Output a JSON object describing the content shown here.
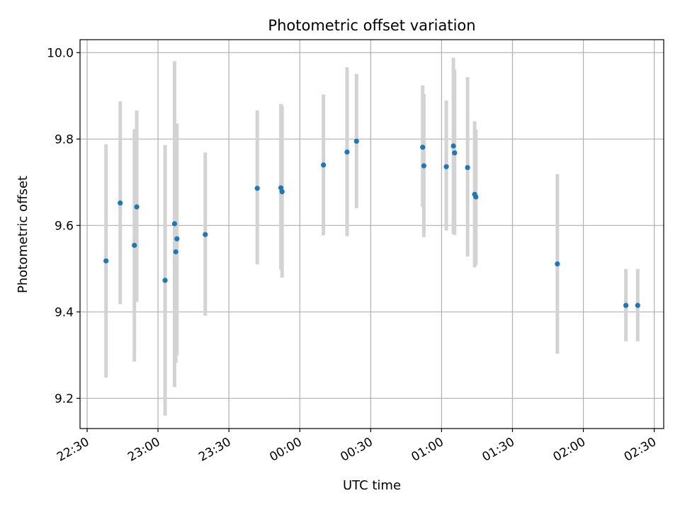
{
  "chart_data": {
    "type": "scatter",
    "title": "Photometric offset variation",
    "xlabel": "UTC time",
    "ylabel": "Photometric offset",
    "x_tick_labels": [
      "22:30",
      "23:00",
      "23:30",
      "00:00",
      "00:30",
      "01:00",
      "01:30",
      "02:00",
      "02:30"
    ],
    "y_tick_labels": [
      "9.2",
      "9.4",
      "9.6",
      "9.8",
      "10.0"
    ],
    "y_ticks": [
      9.2,
      9.4,
      9.6,
      9.8,
      10.0
    ],
    "xlim": [
      "22:27",
      "02:34"
    ],
    "ylim": [
      9.13,
      10.03
    ],
    "grid": true,
    "colors": {
      "points": "#1f77b4",
      "error_bars": "#d3d3d3",
      "grid": "#b0b0b0"
    },
    "series": [
      {
        "x": [
          "22:38",
          "22:44",
          "22:50",
          "22:51",
          "23:03",
          "23:07",
          "23:07:30",
          "23:08",
          "23:20",
          "23:42",
          "23:52",
          "23:52:30",
          "00:10",
          "00:20",
          "00:24",
          "00:52",
          "00:52:30",
          "01:02",
          "01:05",
          "01:05:30",
          "01:11",
          "01:14",
          "01:14:30",
          "01:49",
          "02:18",
          "02:23"
        ],
        "y": [
          9.518,
          9.652,
          9.554,
          9.643,
          9.473,
          9.604,
          9.539,
          9.569,
          9.579,
          9.686,
          9.687,
          9.678,
          9.74,
          9.77,
          9.795,
          9.781,
          9.738,
          9.736,
          9.784,
          9.768,
          9.734,
          9.672,
          9.666,
          9.511,
          9.415,
          9.415
        ],
        "yerr_low": [
          9.248,
          9.418,
          9.285,
          9.423,
          9.16,
          9.226,
          9.282,
          9.3,
          9.391,
          9.51,
          9.498,
          9.479,
          9.577,
          9.575,
          9.64,
          9.642,
          9.573,
          9.588,
          9.58,
          9.578,
          9.528,
          9.503,
          9.508,
          9.303,
          9.332,
          9.332
        ],
        "yerr_high": [
          9.788,
          9.887,
          9.823,
          9.866,
          9.786,
          9.98,
          9.795,
          9.836,
          9.769,
          9.866,
          9.881,
          9.877,
          9.903,
          9.966,
          9.951,
          9.924,
          9.904,
          9.889,
          9.988,
          9.961,
          9.943,
          9.841,
          9.822,
          9.719,
          9.499,
          9.499
        ]
      }
    ]
  }
}
